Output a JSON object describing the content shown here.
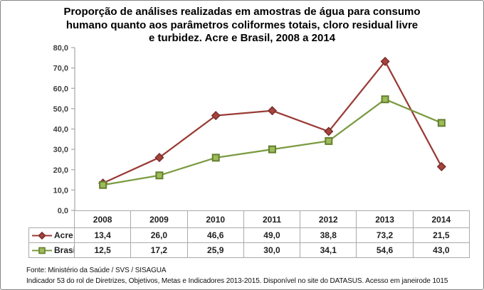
{
  "title_lines": [
    "Proporção de análises realizadas em amostras de água para consumo",
    "humano quanto aos parâmetros coliformes totais, cloro residual livre",
    "e turbidez. Acre e Brasil, 2008 a 2014"
  ],
  "chart_data": {
    "type": "line",
    "categories": [
      "2008",
      "2009",
      "2010",
      "2011",
      "2012",
      "2013",
      "2014"
    ],
    "series": [
      {
        "name": "Acre",
        "values": [
          13.4,
          26.0,
          46.6,
          49.0,
          38.8,
          73.2,
          21.5
        ],
        "marker": "diamond",
        "line_color": "#9a3b36",
        "marker_fill": "#a5453e",
        "marker_stroke": "#7a2d29"
      },
      {
        "name": "Brasil",
        "values": [
          12.5,
          17.2,
          25.9,
          30.0,
          34.1,
          54.6,
          43.0
        ],
        "marker": "square",
        "line_color": "#7b9b41",
        "marker_fill": "#9cbb59",
        "marker_stroke": "#647e2e"
      }
    ],
    "title": "Proporção de análises realizadas em amostras de água para consumo humano quanto aos parâmetros coliformes totais, cloro residual livre e turbidez. Acre e Brasil, 2008 a 2014",
    "xlabel": "",
    "ylabel": "",
    "ylim": [
      0,
      80
    ],
    "y_tick_labels": [
      "80,0",
      "70,0",
      "60,0",
      "50,0",
      "40,0",
      "30,0",
      "20,0",
      "10,0",
      "0,0"
    ],
    "grid": false,
    "legend_position": "table-left",
    "decimal_separator": ","
  },
  "footer": {
    "line1": "Fonte: Ministério da Saúde / SVS / SISAGUA",
    "line2": "Indicador 53 do rol de Diretrizes, Objetivos, Metas e Indicadores 2013-2015. Disponível no site do DATASUS. Acesso em janeirode 1015"
  },
  "colors": {
    "axis": "#a6a6a6",
    "table_border": "#abaaaa",
    "tick_text": "#3f3f3f",
    "frame_border": "#858585"
  }
}
